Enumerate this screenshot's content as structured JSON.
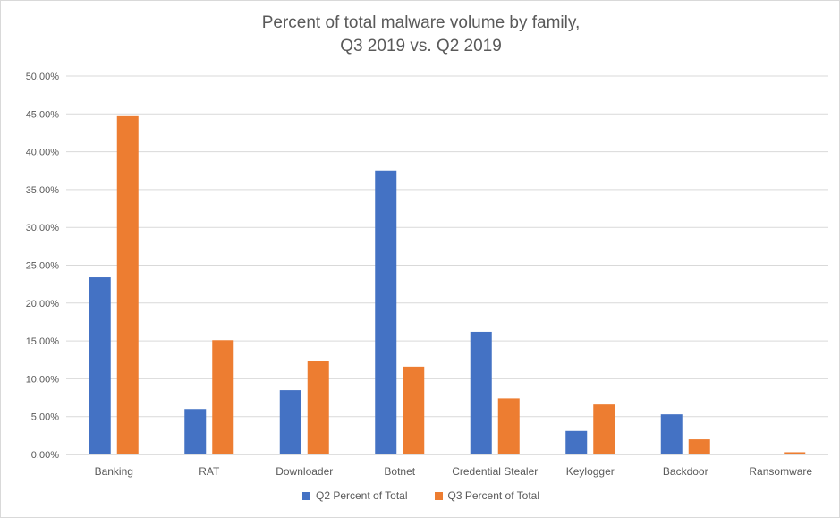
{
  "chart_data": {
    "type": "bar",
    "title": [
      "Percent of total malware volume by family,",
      "Q3 2019 vs. Q2 2019"
    ],
    "categories": [
      "Banking",
      "RAT",
      "Downloader",
      "Botnet",
      "Credential Stealer",
      "Keylogger",
      "Backdoor",
      "Ransomware"
    ],
    "series": [
      {
        "name": "Q2 Percent of Total",
        "color": "#4472c4",
        "values": [
          23.4,
          6.0,
          8.5,
          37.5,
          16.2,
          3.1,
          5.3,
          0.0
        ]
      },
      {
        "name": "Q3 Percent of Total",
        "color": "#ed7d31",
        "values": [
          44.7,
          15.1,
          12.3,
          11.6,
          7.4,
          6.6,
          2.0,
          0.3
        ]
      }
    ],
    "yticks": [
      "0.00%",
      "5.00%",
      "10.00%",
      "15.00%",
      "20.00%",
      "25.00%",
      "30.00%",
      "35.00%",
      "40.00%",
      "45.00%",
      "50.00%"
    ],
    "ylim": [
      0,
      50
    ],
    "grid": true,
    "legend_position": "bottom"
  }
}
